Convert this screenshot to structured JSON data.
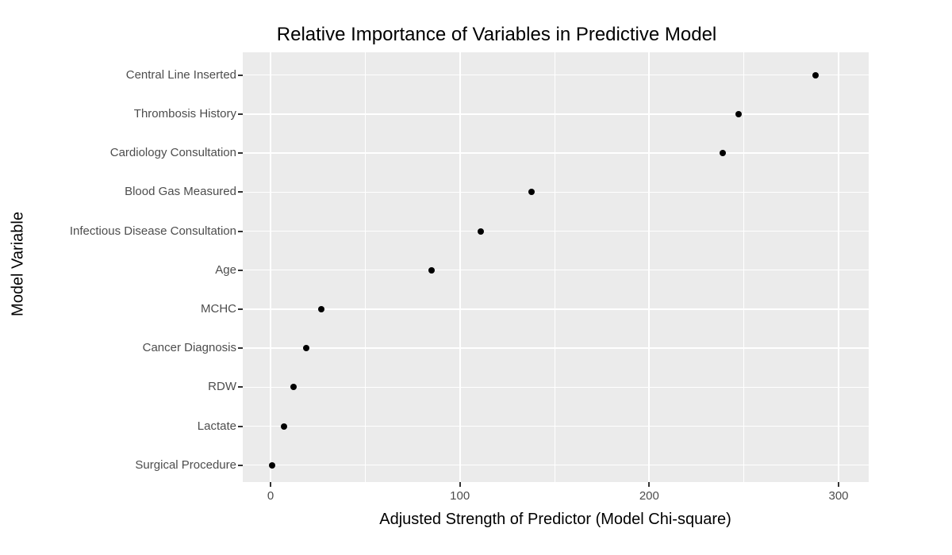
{
  "chart_data": {
    "type": "scatter",
    "variant": "horizontal-dot-plot",
    "title": "Relative Importance of Variables in Predictive Model",
    "xlabel": "Adjusted Strength of Predictor (Model Chi-square)",
    "ylabel": "Model Variable",
    "categories": [
      "Central Line Inserted",
      "Thrombosis History",
      "Cardiology Consultation",
      "Blood Gas Measured",
      "Infectious Disease Consultation",
      "Age",
      "MCHC",
      "Cancer Diagnosis",
      "RDW",
      "Lactate",
      "Surgical Procedure"
    ],
    "values": [
      288,
      247,
      239,
      138,
      111,
      85,
      27,
      19,
      12,
      7,
      1
    ],
    "x_ticks": [
      0,
      100,
      200,
      300
    ],
    "xlim": [
      -15,
      316
    ],
    "grid": "major and minor vertical white gridlines, horizontal white gridline per category",
    "legend": "none",
    "colors": {
      "panel_background": "#EBEBEB",
      "gridline": "#FFFFFF",
      "point": "#000000",
      "tick_label": "#4D4D4D",
      "tick_mark": "#333333",
      "title_text": "#000000"
    }
  }
}
